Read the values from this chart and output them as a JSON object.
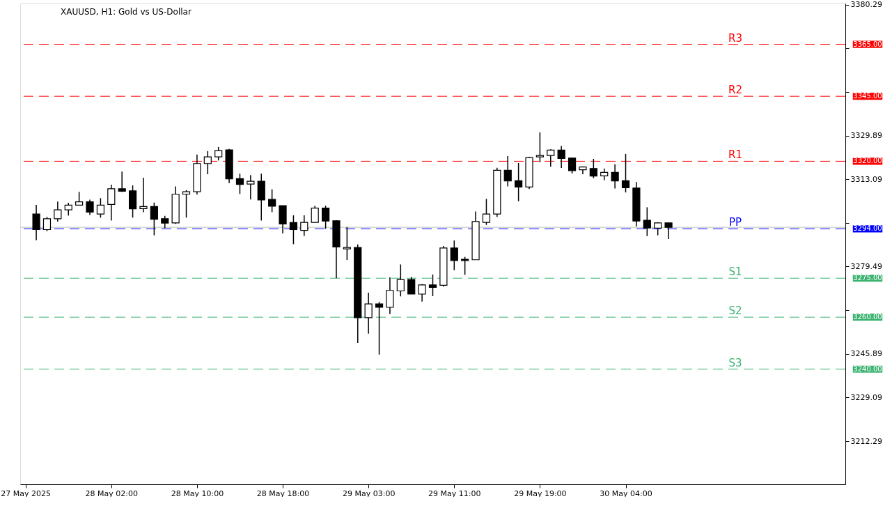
{
  "chart_data": {
    "type": "candlestick",
    "title": "XAUUSD, H1:  Gold vs US-Dollar",
    "categories": [
      "27 May 2025",
      null,
      null,
      null,
      null,
      null,
      null,
      null,
      "28 May 02:00",
      null,
      null,
      null,
      null,
      null,
      null,
      null,
      "28 May 10:00",
      null,
      null,
      null,
      null,
      null,
      null,
      null,
      "28 May 18:00",
      null,
      null,
      null,
      null,
      null,
      null,
      null,
      "29 May 03:00",
      null,
      null,
      null,
      null,
      null,
      null,
      null,
      "29 May 11:00",
      null,
      null,
      null,
      null,
      null,
      null,
      null,
      "29 May 19:00",
      null,
      null,
      null,
      null,
      null,
      null,
      null,
      "30 May 04:00",
      null,
      null,
      null,
      null,
      null,
      null,
      null,
      null,
      null,
      null,
      null,
      null,
      null,
      null,
      null,
      null,
      null,
      null,
      null,
      null
    ],
    "annotations": [
      "3365.00",
      "3345.00",
      "3320.00",
      "3294.00",
      "3275.00",
      "3260.00",
      "3240.00"
    ],
    "ohlc": [
      null,
      [
        3299.7,
        3303.2,
        3289.6,
        3293.7
      ],
      [
        3293.7,
        3298.6,
        3293.1,
        3297.9
      ],
      [
        3297.9,
        3304.5,
        3296.8,
        3301.3
      ],
      [
        3301.3,
        3304.0,
        3299.1,
        3303.1
      ],
      [
        3303.1,
        3308.2,
        3303.1,
        3304.4
      ],
      [
        3304.4,
        3305.2,
        3299.3,
        3300.4
      ],
      [
        3299.7,
        3305.8,
        3298.3,
        3303.1
      ],
      [
        3303.4,
        3311.0,
        3297.2,
        3309.4
      ],
      [
        3309.4,
        3316.0,
        3308.2,
        3308.5
      ],
      [
        3308.6,
        3310.7,
        3298.3,
        3301.7
      ],
      [
        3301.8,
        3313.7,
        3300.4,
        3302.6
      ],
      [
        3302.6,
        3304.1,
        3291.5,
        3297.7
      ],
      [
        3297.9,
        3299.0,
        3294.3,
        3296.2
      ],
      [
        3296.3,
        3310.3,
        3295.9,
        3307.3
      ],
      [
        3307.3,
        3308.9,
        3298.3,
        3308.3
      ],
      [
        3308.3,
        3322.6,
        3307.2,
        3319.1
      ],
      [
        3319.1,
        3323.9,
        3315.0,
        3321.7
      ],
      [
        3321.7,
        3325.5,
        3320.3,
        3324.1
      ],
      [
        3324.4,
        3324.7,
        3311.6,
        3313.2
      ],
      [
        3313.3,
        3315.2,
        3307.4,
        3311.1
      ],
      [
        3311.2,
        3314.7,
        3305.3,
        3312.3
      ],
      [
        3312.3,
        3315.2,
        3297.2,
        3305.1
      ],
      [
        3305.3,
        3309.2,
        3300.4,
        3302.7
      ],
      [
        3302.9,
        3302.9,
        3292.2,
        3295.9
      ],
      [
        3296.4,
        3299.2,
        3288.1,
        3293.7
      ],
      [
        3293.4,
        3299.2,
        3291.3,
        3296.5
      ],
      [
        3296.5,
        3302.9,
        3296.5,
        3302.0
      ],
      [
        3302.0,
        3302.9,
        3294.0,
        3297.0
      ],
      [
        3297.1,
        3297.3,
        3275.0,
        3287.0
      ],
      [
        3286.3,
        3294.7,
        3282.0,
        3286.8
      ],
      [
        3286.8,
        3288.0,
        3250.1,
        3259.8
      ],
      [
        3259.8,
        3269.4,
        3253.7,
        3265.1
      ],
      [
        3265.1,
        3265.9,
        3245.6,
        3263.8
      ],
      [
        3263.8,
        3275.3,
        3261.2,
        3270.3
      ],
      [
        3270.1,
        3280.3,
        3268.0,
        3274.5
      ],
      [
        3274.5,
        3275.5,
        3268.9,
        3268.9
      ],
      [
        3268.9,
        3272.7,
        3266.0,
        3272.4
      ],
      [
        3272.4,
        3276.4,
        3268.1,
        3271.5
      ],
      [
        3272.3,
        3287.4,
        3271.8,
        3286.6
      ],
      [
        3286.6,
        3289.5,
        3278.1,
        3281.8
      ],
      [
        3282.3,
        3283.2,
        3276.3,
        3281.8
      ],
      [
        3282.1,
        3300.7,
        3282.1,
        3296.8
      ],
      [
        3296.5,
        3305.5,
        3295.5,
        3299.7
      ],
      [
        3299.7,
        3317.5,
        3298.6,
        3316.5
      ],
      [
        3316.5,
        3322.0,
        3310.3,
        3312.4
      ],
      [
        3312.5,
        3319.3,
        3304.6,
        3310.1
      ],
      [
        3310.1,
        3321.7,
        3309.3,
        3321.4
      ],
      [
        3321.7,
        3331.1,
        3319.6,
        3322.2
      ],
      [
        3322.2,
        3324.6,
        3317.9,
        3324.3
      ],
      [
        3324.3,
        3325.9,
        3317.4,
        3321.1
      ],
      [
        3321.2,
        3321.4,
        3315.3,
        3316.4
      ],
      [
        3316.7,
        3318.0,
        3315.0,
        3317.8
      ],
      [
        3317.2,
        3320.9,
        3313.5,
        3314.3
      ],
      [
        3314.4,
        3317.2,
        3312.7,
        3315.7
      ],
      [
        3315.7,
        3318.8,
        3309.5,
        3312.4
      ],
      [
        3312.5,
        3322.8,
        3308.0,
        3309.8
      ],
      [
        3309.7,
        3312.0,
        3294.9,
        3297.0
      ],
      [
        3297.3,
        3302.3,
        3291.2,
        3294.3
      ],
      [
        3294.3,
        3296.5,
        3291.5,
        3296.3
      ],
      [
        3296.3,
        3296.3,
        3290.1,
        3294.6
      ],
      null,
      null,
      null,
      null,
      null,
      null,
      null,
      null,
      null,
      null,
      null,
      null,
      null,
      null,
      null,
      null
    ],
    "ylim": [
      3195.7,
      3380.7
    ],
    "yticks": [
      3212.29,
      3229.09,
      3245.89,
      {
        "value": 3262.69,
        "label": null
      },
      3279.49,
      {
        "value": 3296.29,
        "label": null
      },
      3313.09,
      3329.89,
      {
        "value": 3346.69,
        "label": null
      },
      {
        "value": 3363.49,
        "label": null
      },
      3380.29
    ],
    "ref_lines": [
      {
        "axis": "y",
        "value": 3365,
        "label": "R3",
        "color": "#ff0000",
        "line_style": "dashed"
      },
      {
        "axis": "y",
        "value": 3345,
        "label": "R2",
        "color": "#ff0000",
        "line_style": "dashed"
      },
      {
        "axis": "y",
        "value": 3320,
        "label": "R1",
        "color": "#ff0000",
        "line_style": "dashed"
      },
      {
        "axis": "y",
        "value": 3294,
        "label": "PP",
        "color": "#0000ff",
        "line_style": "dashed"
      },
      {
        "axis": "y",
        "value": 3275,
        "label": "S1",
        "color": "#3cb371",
        "line_style": "dashed"
      },
      {
        "axis": "y",
        "value": 3260,
        "label": "S2",
        "color": "#3cb371",
        "line_style": "dashed"
      },
      {
        "axis": "y",
        "value": 3240,
        "label": "S3",
        "color": "#3cb371",
        "line_style": "dashed"
      },
      {
        "axis": "y",
        "value": 3294.6,
        "color": "#c0c0c0",
        "line_style": "solid"
      }
    ],
    "grid": false
  }
}
